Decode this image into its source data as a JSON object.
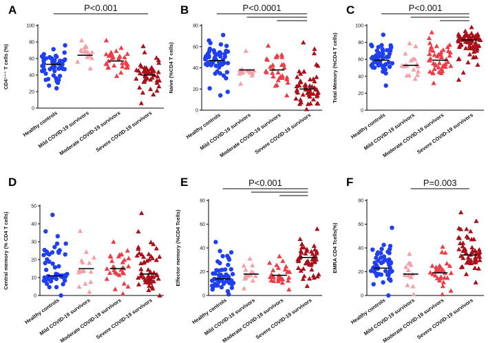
{
  "colors": {
    "healthy": "#1f3ff0",
    "mild": "#f4a0a8",
    "moderate": "#ee3b45",
    "severe": "#a8101a",
    "axis": "#000000",
    "bracket": "#000000"
  },
  "markers": {
    "healthy": "circle",
    "mild": "triangle",
    "moderate": "triangle",
    "severe": "triangle"
  },
  "chart_data": [
    {
      "panel": "A",
      "type": "scatter",
      "ylabel": "CD4⁺⁺⁺ T cells (%)",
      "ylim": [
        0,
        100
      ],
      "yticks": [
        0,
        20,
        40,
        60,
        80,
        100
      ],
      "categories": [
        "Healthy controls",
        "Mild COVID-19 survivors",
        "Moderate COVID-19 survivors",
        "Severe COVID-19 survivors"
      ],
      "means": [
        53,
        64,
        57,
        40
      ],
      "counts": [
        50,
        15,
        30,
        50
      ],
      "spread": [
        [
          24,
          76
        ],
        [
          48,
          82
        ],
        [
          39,
          82
        ],
        [
          6,
          75
        ]
      ],
      "p_value": "P<0.001",
      "brackets": [
        [
          0,
          3
        ]
      ]
    },
    {
      "panel": "B",
      "type": "scatter",
      "ylabel": "Naive (%CD4 T cells)",
      "ylim": [
        0,
        80
      ],
      "yticks": [
        0,
        20,
        40,
        60,
        80
      ],
      "categories": [
        "Healthy controls",
        "Mild COVID-19 survivors",
        "Moderate COVID-19 survivors",
        "Severe COVID-19 survivors"
      ],
      "means": [
        47,
        38,
        38,
        20
      ],
      "counts": [
        55,
        15,
        30,
        55
      ],
      "spread": [
        [
          14,
          71
        ],
        [
          25,
          56
        ],
        [
          14,
          61
        ],
        [
          1,
          64
        ]
      ],
      "p_value": "P<0.0001",
      "brackets": [
        [
          0,
          3
        ],
        [
          1,
          3
        ],
        [
          2,
          3
        ]
      ]
    },
    {
      "panel": "C",
      "type": "scatter",
      "ylabel": "Total Memory (%CD4 T cells)",
      "ylim": [
        0,
        100
      ],
      "yticks": [
        0,
        20,
        40,
        60,
        80,
        100
      ],
      "categories": [
        "Healthy controls",
        "Mild COVID-19 survivors",
        "Moderate COVID-19 survivors",
        "Severe COVID-19 survivors"
      ],
      "means": [
        59,
        53,
        59,
        83
      ],
      "counts": [
        55,
        20,
        45,
        75
      ],
      "spread": [
        [
          29,
          89
        ],
        [
          37,
          79
        ],
        [
          32,
          92
        ],
        [
          36,
          98
        ]
      ],
      "p_value": "P<0.001",
      "brackets": [
        [
          0,
          3
        ],
        [
          1,
          3
        ],
        [
          2,
          3
        ]
      ]
    },
    {
      "panel": "D",
      "type": "scatter",
      "ylabel": "Central memory (% CD4 T cells)",
      "ylim": [
        0,
        50
      ],
      "yticks": [
        0,
        10,
        20,
        30,
        40,
        50
      ],
      "categories": [
        "Healthy controls",
        "Mild COVID-19 survivors",
        "Moderate COVID-19 survivors",
        "Severe COVID-19 survivors"
      ],
      "means": [
        11,
        15,
        15,
        12
      ],
      "counts": [
        50,
        15,
        30,
        55
      ],
      "spread": [
        [
          0,
          45
        ],
        [
          2,
          36
        ],
        [
          1,
          30
        ],
        [
          0,
          46
        ]
      ],
      "p_value": "",
      "brackets": []
    },
    {
      "panel": "E",
      "type": "scatter",
      "ylabel": "Effector memory (%CD4 Tcells)",
      "ylim": [
        0,
        80
      ],
      "yticks": [
        0,
        20,
        40,
        60,
        80
      ],
      "categories": [
        "Healthy controls",
        "Mild COVID-19 survivors",
        "Moderate COVID-19 survivors",
        "Severe COVID-19 survivors"
      ],
      "means": [
        14,
        18,
        17,
        32
      ],
      "counts": [
        55,
        15,
        30,
        50
      ],
      "spread": [
        [
          1,
          45
        ],
        [
          6,
          31
        ],
        [
          5,
          33
        ],
        [
          8,
          56
        ]
      ],
      "p_value": "P<0.001",
      "brackets": [
        [
          0,
          3
        ],
        [
          1,
          3
        ],
        [
          2,
          3
        ]
      ]
    },
    {
      "panel": "F",
      "type": "scatter",
      "ylabel": "EMRA CD4 Tcells(%)",
      "ylim": [
        0,
        80
      ],
      "yticks": [
        0,
        20,
        40,
        60,
        80
      ],
      "categories": [
        "Healthy controls",
        "Mild COVID-19 survivors",
        "Moderate COVID-19 survivors",
        "Severe COVID-19 survivors"
      ],
      "means": [
        23,
        18,
        19,
        34
      ],
      "counts": [
        55,
        15,
        30,
        55
      ],
      "spread": [
        [
          0,
          57
        ],
        [
          1,
          35
        ],
        [
          1,
          41
        ],
        [
          11,
          70
        ]
      ],
      "p_value": "P=0.003",
      "brackets": [
        [
          1,
          3
        ]
      ]
    }
  ]
}
